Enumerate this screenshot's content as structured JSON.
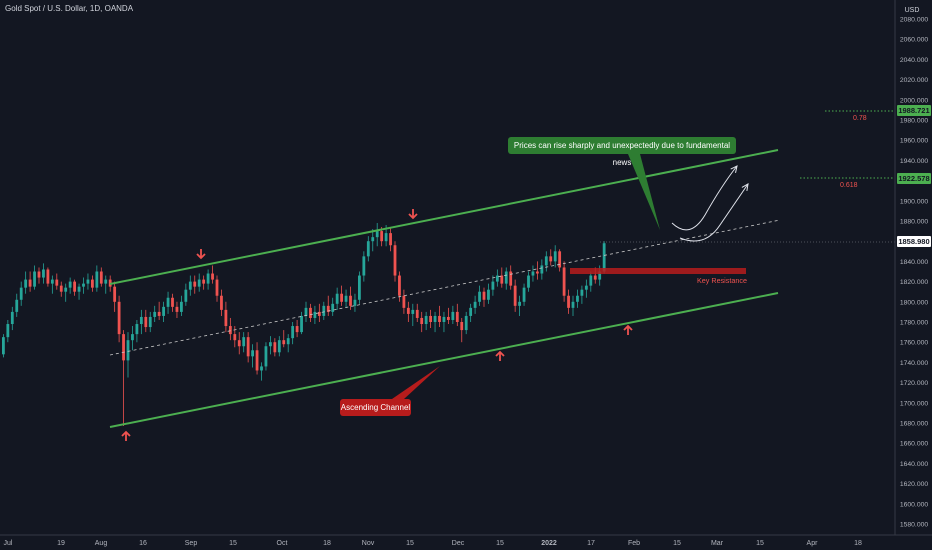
{
  "header": {
    "title": "Gold Spot / U.S. Dollar, 1D, OANDA"
  },
  "price_axis": {
    "currency": "USD",
    "ticks": [
      "2080.000",
      "2060.000",
      "2040.000",
      "2020.000",
      "2000.000",
      "1980.000",
      "1960.000",
      "1940.000",
      "1920.000",
      "1900.000",
      "1880.000",
      "1860.000",
      "1840.000",
      "1820.000",
      "1800.000",
      "1780.000",
      "1760.000",
      "1740.000",
      "1720.000",
      "1700.000",
      "1680.000",
      "1660.000",
      "1640.000",
      "1620.000",
      "1600.000",
      "1580.000"
    ],
    "tags": [
      {
        "label": "1988.721",
        "bg": "#4caf50",
        "fg": "#131722"
      },
      {
        "label": "1922.578",
        "bg": "#4caf50",
        "fg": "#131722"
      },
      {
        "label": "1858.980",
        "bg": "#ffffff",
        "fg": "#131722"
      }
    ]
  },
  "time_axis": {
    "labels": [
      "Jul",
      "19",
      "Aug",
      "16",
      "Sep",
      "15",
      "Oct",
      "18",
      "Nov",
      "15",
      "Dec",
      "15",
      "2022",
      "17",
      "Feb",
      "15",
      "Mar",
      "15",
      "Apr",
      "18"
    ]
  },
  "annotations": {
    "fib_078": "0.78",
    "fib_0618": "0.618",
    "key_resistance": "Key Resistance",
    "callout_news": "Prices can rise sharply and unexpectedly due to fundamental news",
    "callout_channel": "Ascending Channel"
  },
  "colors": {
    "background": "#131722",
    "up": "#26a69a",
    "down": "#ef5350",
    "channel": "#4caf50",
    "text": "#d1d4dc",
    "grid": "#2a2e39"
  },
  "chart_data": {
    "type": "candlestick",
    "title": "Gold Spot / U.S. Dollar, 1D, OANDA",
    "ylim": [
      1572,
      2088
    ],
    "candles": [
      [
        1748,
        1768,
        1745,
        1765
      ],
      [
        1765,
        1782,
        1760,
        1778
      ],
      [
        1778,
        1795,
        1772,
        1790
      ],
      [
        1790,
        1808,
        1785,
        1802
      ],
      [
        1802,
        1820,
        1796,
        1814
      ],
      [
        1814,
        1830,
        1808,
        1822
      ],
      [
        1822,
        1830,
        1810,
        1815
      ],
      [
        1815,
        1836,
        1812,
        1830
      ],
      [
        1830,
        1834,
        1818,
        1824
      ],
      [
        1824,
        1838,
        1818,
        1832
      ],
      [
        1832,
        1834,
        1815,
        1818
      ],
      [
        1818,
        1826,
        1808,
        1822
      ],
      [
        1822,
        1828,
        1812,
        1816
      ],
      [
        1816,
        1820,
        1805,
        1810
      ],
      [
        1810,
        1818,
        1800,
        1814
      ],
      [
        1814,
        1824,
        1808,
        1820
      ],
      [
        1820,
        1822,
        1806,
        1810
      ],
      [
        1810,
        1818,
        1802,
        1815
      ],
      [
        1815,
        1824,
        1808,
        1818
      ],
      [
        1818,
        1828,
        1812,
        1822
      ],
      [
        1822,
        1826,
        1810,
        1814
      ],
      [
        1814,
        1836,
        1810,
        1830
      ],
      [
        1830,
        1834,
        1815,
        1818
      ],
      [
        1818,
        1826,
        1808,
        1822
      ],
      [
        1822,
        1826,
        1810,
        1815
      ],
      [
        1815,
        1820,
        1790,
        1800
      ],
      [
        1800,
        1806,
        1760,
        1768
      ],
      [
        1768,
        1772,
        1677,
        1742
      ],
      [
        1742,
        1770,
        1725,
        1762
      ],
      [
        1762,
        1776,
        1752,
        1768
      ],
      [
        1768,
        1782,
        1760,
        1778
      ],
      [
        1778,
        1792,
        1768,
        1785
      ],
      [
        1785,
        1792,
        1770,
        1775
      ],
      [
        1775,
        1790,
        1770,
        1785
      ],
      [
        1785,
        1796,
        1780,
        1790
      ],
      [
        1790,
        1800,
        1782,
        1786
      ],
      [
        1786,
        1800,
        1780,
        1795
      ],
      [
        1795,
        1810,
        1788,
        1804
      ],
      [
        1804,
        1808,
        1790,
        1795
      ],
      [
        1795,
        1800,
        1784,
        1790
      ],
      [
        1790,
        1806,
        1786,
        1800
      ],
      [
        1800,
        1818,
        1796,
        1812
      ],
      [
        1812,
        1826,
        1806,
        1820
      ],
      [
        1820,
        1826,
        1808,
        1815
      ],
      [
        1815,
        1828,
        1810,
        1822
      ],
      [
        1822,
        1826,
        1812,
        1818
      ],
      [
        1818,
        1832,
        1812,
        1828
      ],
      [
        1828,
        1836,
        1818,
        1822
      ],
      [
        1822,
        1826,
        1800,
        1806
      ],
      [
        1806,
        1812,
        1786,
        1792
      ],
      [
        1792,
        1800,
        1770,
        1776
      ],
      [
        1776,
        1784,
        1762,
        1768
      ],
      [
        1768,
        1776,
        1755,
        1762
      ],
      [
        1762,
        1770,
        1748,
        1756
      ],
      [
        1756,
        1770,
        1750,
        1765
      ],
      [
        1765,
        1770,
        1740,
        1746
      ],
      [
        1746,
        1758,
        1735,
        1752
      ],
      [
        1752,
        1760,
        1728,
        1732
      ],
      [
        1732,
        1740,
        1722,
        1736
      ],
      [
        1736,
        1760,
        1732,
        1756
      ],
      [
        1756,
        1766,
        1748,
        1760
      ],
      [
        1760,
        1764,
        1746,
        1750
      ],
      [
        1750,
        1766,
        1746,
        1762
      ],
      [
        1762,
        1772,
        1755,
        1758
      ],
      [
        1758,
        1768,
        1750,
        1764
      ],
      [
        1764,
        1780,
        1758,
        1776
      ],
      [
        1776,
        1782,
        1765,
        1770
      ],
      [
        1770,
        1790,
        1768,
        1786
      ],
      [
        1786,
        1800,
        1780,
        1794
      ],
      [
        1794,
        1798,
        1780,
        1784
      ],
      [
        1784,
        1796,
        1778,
        1790
      ],
      [
        1790,
        1798,
        1780,
        1786
      ],
      [
        1786,
        1800,
        1782,
        1796
      ],
      [
        1796,
        1806,
        1786,
        1790
      ],
      [
        1790,
        1804,
        1786,
        1798
      ],
      [
        1798,
        1814,
        1792,
        1808
      ],
      [
        1808,
        1816,
        1796,
        1800
      ],
      [
        1800,
        1812,
        1794,
        1806
      ],
      [
        1806,
        1815,
        1792,
        1796
      ],
      [
        1796,
        1808,
        1790,
        1802
      ],
      [
        1802,
        1830,
        1798,
        1826
      ],
      [
        1826,
        1850,
        1820,
        1845
      ],
      [
        1845,
        1865,
        1840,
        1860
      ],
      [
        1860,
        1872,
        1850,
        1864
      ],
      [
        1864,
        1878,
        1855,
        1870
      ],
      [
        1870,
        1874,
        1855,
        1860
      ],
      [
        1860,
        1876,
        1855,
        1868
      ],
      [
        1868,
        1874,
        1850,
        1856
      ],
      [
        1856,
        1860,
        1820,
        1826
      ],
      [
        1826,
        1830,
        1800,
        1806
      ],
      [
        1806,
        1812,
        1788,
        1794
      ],
      [
        1794,
        1800,
        1780,
        1788
      ],
      [
        1788,
        1798,
        1776,
        1792
      ],
      [
        1792,
        1798,
        1780,
        1784
      ],
      [
        1784,
        1790,
        1770,
        1778
      ],
      [
        1778,
        1790,
        1772,
        1786
      ],
      [
        1786,
        1792,
        1774,
        1780
      ],
      [
        1780,
        1790,
        1770,
        1786
      ],
      [
        1786,
        1796,
        1775,
        1780
      ],
      [
        1780,
        1790,
        1770,
        1785
      ],
      [
        1785,
        1794,
        1778,
        1782
      ],
      [
        1782,
        1796,
        1778,
        1790
      ],
      [
        1790,
        1798,
        1776,
        1780
      ],
      [
        1780,
        1784,
        1760,
        1772
      ],
      [
        1772,
        1790,
        1768,
        1786
      ],
      [
        1786,
        1798,
        1780,
        1794
      ],
      [
        1794,
        1806,
        1788,
        1800
      ],
      [
        1800,
        1816,
        1796,
        1810
      ],
      [
        1810,
        1814,
        1795,
        1802
      ],
      [
        1802,
        1818,
        1798,
        1812
      ],
      [
        1812,
        1826,
        1806,
        1820
      ],
      [
        1820,
        1832,
        1815,
        1826
      ],
      [
        1826,
        1834,
        1814,
        1818
      ],
      [
        1818,
        1834,
        1812,
        1830
      ],
      [
        1830,
        1836,
        1812,
        1816
      ],
      [
        1816,
        1822,
        1790,
        1796
      ],
      [
        1796,
        1806,
        1786,
        1800
      ],
      [
        1800,
        1818,
        1796,
        1814
      ],
      [
        1814,
        1830,
        1810,
        1826
      ],
      [
        1826,
        1836,
        1820,
        1830
      ],
      [
        1830,
        1840,
        1822,
        1828
      ],
      [
        1828,
        1842,
        1822,
        1836
      ],
      [
        1836,
        1850,
        1830,
        1845
      ],
      [
        1845,
        1852,
        1836,
        1840
      ],
      [
        1840,
        1856,
        1834,
        1850
      ],
      [
        1850,
        1852,
        1830,
        1834
      ],
      [
        1834,
        1840,
        1800,
        1806
      ],
      [
        1806,
        1812,
        1788,
        1794
      ],
      [
        1794,
        1806,
        1786,
        1800
      ],
      [
        1800,
        1812,
        1794,
        1806
      ],
      [
        1806,
        1816,
        1798,
        1812
      ],
      [
        1812,
        1822,
        1804,
        1816
      ],
      [
        1816,
        1830,
        1810,
        1826
      ],
      [
        1826,
        1834,
        1818,
        1822
      ],
      [
        1822,
        1836,
        1816,
        1830
      ],
      [
        1830,
        1860,
        1828,
        1858
      ]
    ],
    "channel_upper": {
      "from": [
        "2021-08-06",
        1816
      ],
      "to": [
        "2022-03-10",
        1950
      ]
    },
    "channel_lower": {
      "from": [
        "2021-08-06",
        1676
      ],
      "to": [
        "2022-03-10",
        1808
      ]
    },
    "channel_mid": {
      "from": [
        "2021-08-06",
        1748
      ],
      "to": [
        "2022-03-10",
        1880
      ]
    },
    "key_resistance_zone": [
      1829,
      1834
    ],
    "levels": [
      {
        "label": "0.78",
        "price": 1988.721
      },
      {
        "label": "0.618",
        "price": 1922.578
      },
      {
        "label": "last",
        "price": 1858.98
      }
    ]
  }
}
